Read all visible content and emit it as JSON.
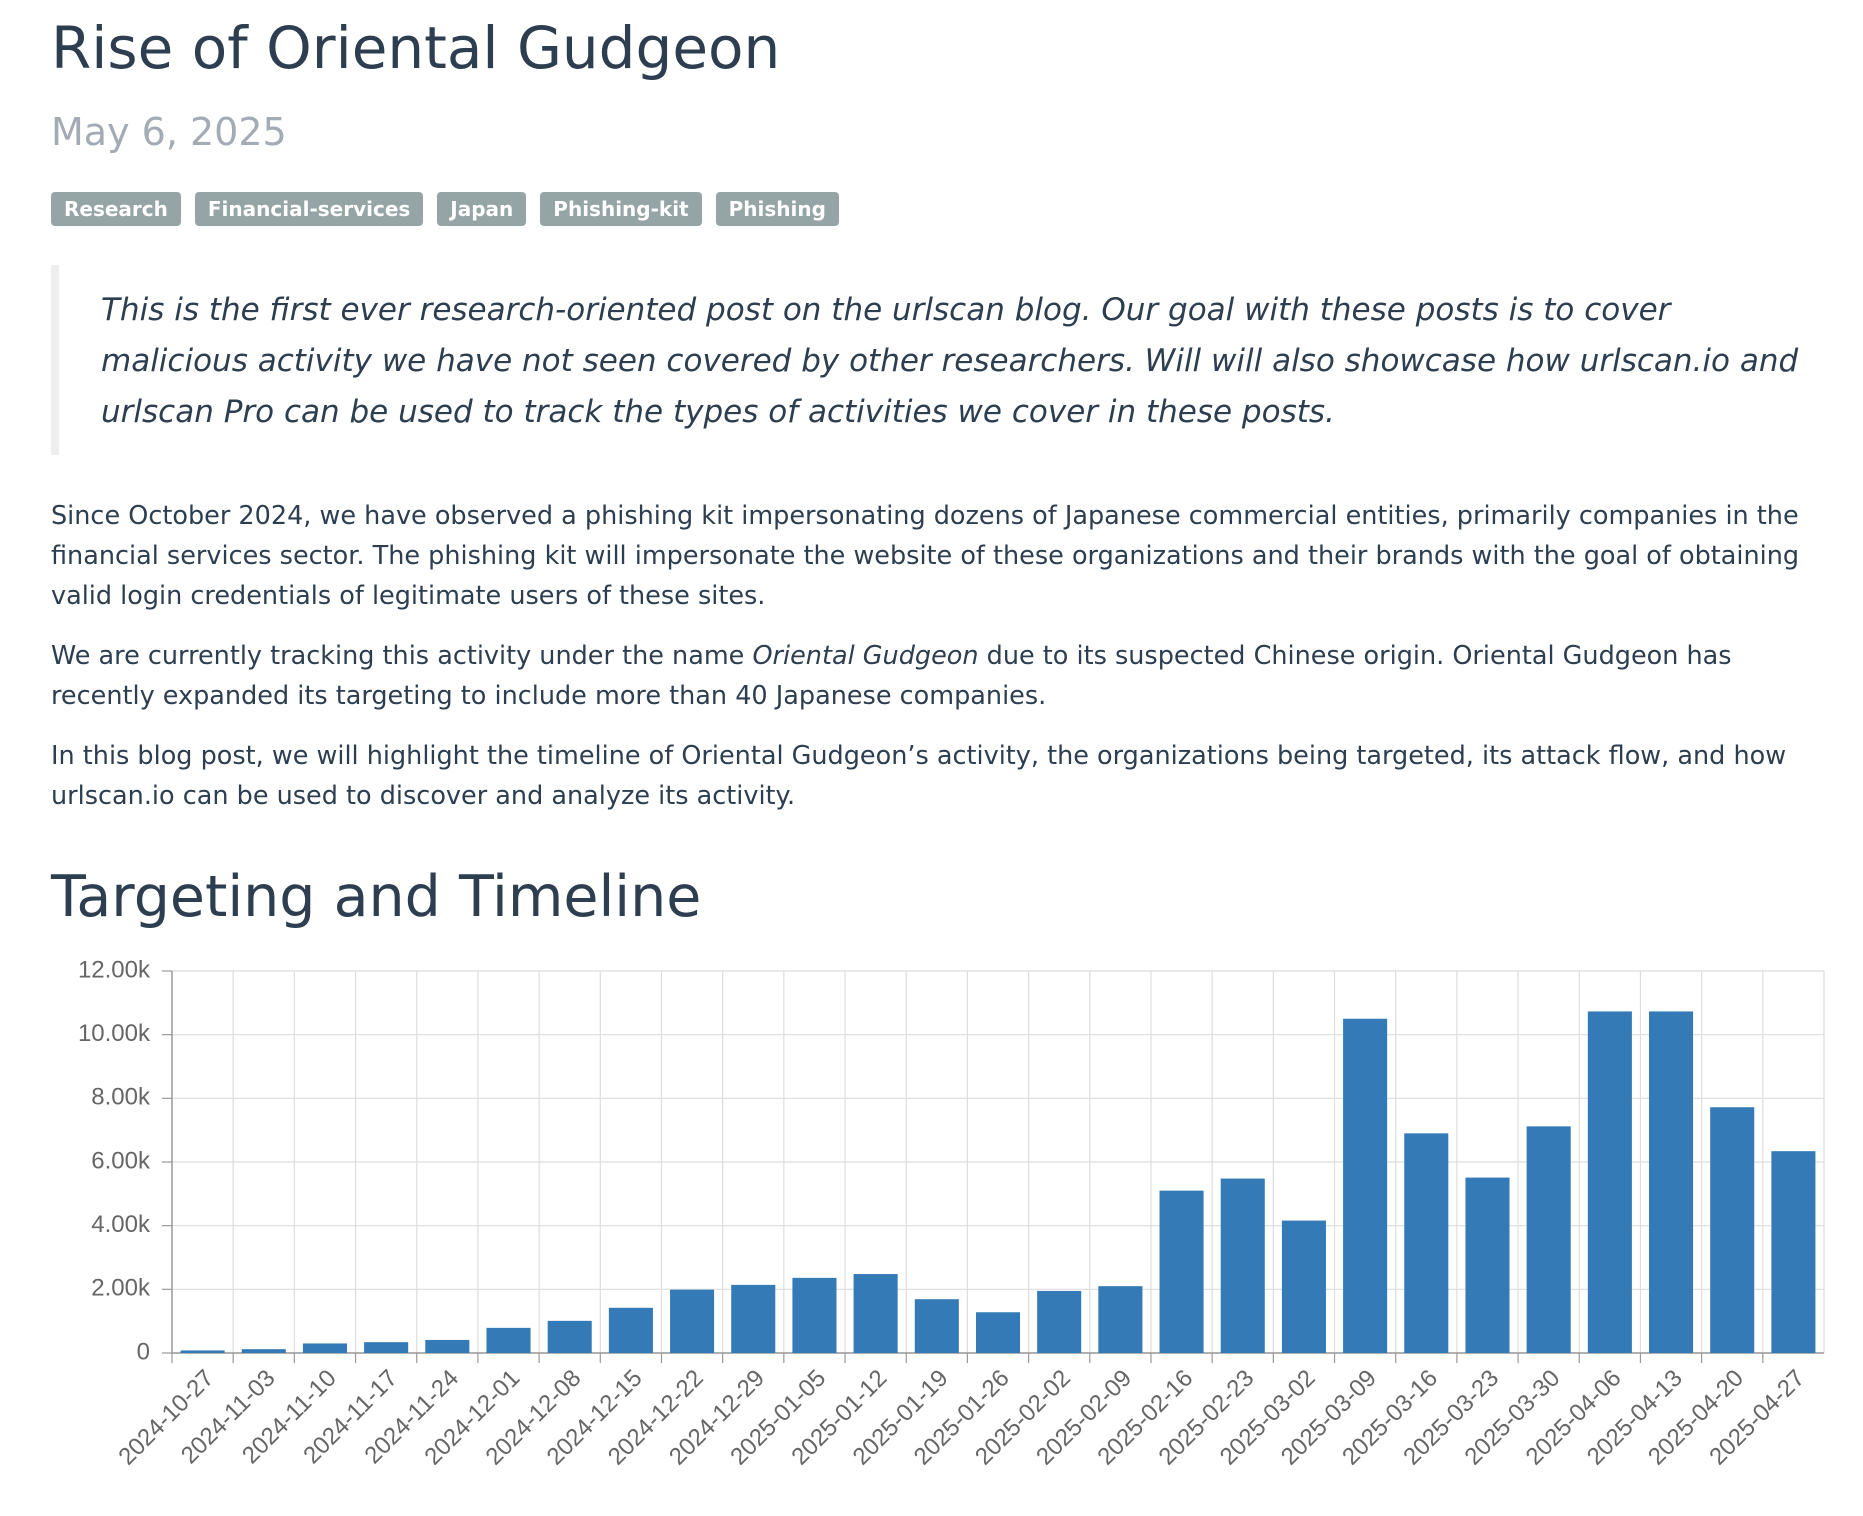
{
  "header": {
    "title": "Rise of Oriental Gudgeon",
    "date": "May 6, 2025",
    "tags": [
      "Research",
      "Financial-services",
      "Japan",
      "Phishing-kit",
      "Phishing"
    ]
  },
  "quote": "This is the first ever research-oriented post on the urlscan blog. Our goal with these posts is to cover malicious activity we have not seen covered by other researchers. Will will also showcase how urlscan.io and urlscan Pro can be used to track the types of activities we cover in these posts.",
  "paragraphs": [
    [
      "Since October 2024, we have observed a phishing kit impersonating dozens of Japanese commercial entities, primarily companies in the financial services sector. The phishing kit will impersonate the website of these organizations and their brands with the goal of obtaining valid login credentials of legitimate users of these sites."
    ],
    [
      "We are currently tracking this activity under the name ",
      "Oriental Gudgeon",
      " due to its suspected Chinese origin. Oriental Gudgeon has recently expanded its targeting to include more than 40 Japanese companies."
    ],
    [
      "In this blog post, we will highlight the timeline of Oriental Gudgeon’s activity, the organizations being targeted, its attack flow, and how urlscan.io can be used to discover and analyze its activity."
    ]
  ],
  "section_heading": "Targeting and Timeline",
  "chart_data": {
    "type": "bar",
    "color": "#337ab7",
    "grid": true,
    "categories": [
      "2024-10-27",
      "2024-11-03",
      "2024-11-10",
      "2024-11-17",
      "2024-11-24",
      "2024-12-01",
      "2024-12-08",
      "2024-12-15",
      "2024-12-22",
      "2024-12-29",
      "2025-01-05",
      "2025-01-12",
      "2025-01-19",
      "2025-01-26",
      "2025-02-02",
      "2025-02-09",
      "2025-02-16",
      "2025-02-23",
      "2025-03-02",
      "2025-03-09",
      "2025-03-16",
      "2025-03-23",
      "2025-03-30",
      "2025-04-06",
      "2025-04-13",
      "2025-04-20",
      "2025-04-27"
    ],
    "values": [
      80,
      120,
      300,
      340,
      410,
      790,
      1010,
      1420,
      1990,
      2140,
      2360,
      2480,
      1690,
      1280,
      1950,
      2100,
      5100,
      5480,
      4160,
      10500,
      6900,
      5510,
      7120,
      10730,
      10730,
      7720,
      6340
    ],
    "ylim": [
      0,
      12000
    ],
    "yticks": [
      0,
      {
        "value": 2000,
        "label": "2.00k"
      },
      {
        "value": 4000,
        "label": "4.00k"
      },
      {
        "value": 6000,
        "label": "6.00k"
      },
      {
        "value": 8000,
        "label": "8.00k"
      },
      {
        "value": 10000,
        "label": "10.00k"
      },
      {
        "value": 12000,
        "label": "12.00k"
      }
    ]
  }
}
